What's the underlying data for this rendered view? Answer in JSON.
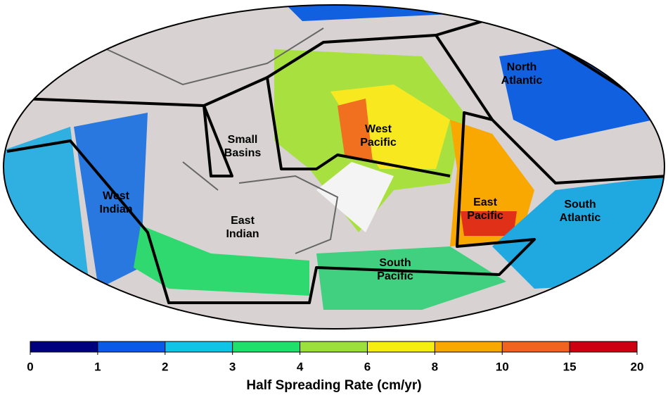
{
  "map": {
    "regions": [
      {
        "lines": [
          "North",
          "Atlantic"
        ]
      },
      {
        "lines": [
          "West",
          "Pacific"
        ]
      },
      {
        "lines": [
          "Small",
          "Basins"
        ]
      },
      {
        "lines": [
          "West",
          "Indian"
        ]
      },
      {
        "lines": [
          "East",
          "Indian"
        ]
      },
      {
        "lines": [
          "East",
          "Pacific"
        ]
      },
      {
        "lines": [
          "South",
          "Atlantic"
        ]
      },
      {
        "lines": [
          "South",
          "Pacific"
        ]
      }
    ],
    "colorbar": {
      "label": "Half Spreading Rate (cm/yr)",
      "ticks": [
        0,
        1,
        2,
        3,
        4,
        6,
        8,
        10,
        15,
        20
      ],
      "colors": [
        "#00007f",
        "#0a5ae8",
        "#10c4e8",
        "#1ee06a",
        "#9be03c",
        "#f6ee10",
        "#f8a800",
        "#f06420",
        "#cc0010"
      ]
    }
  }
}
